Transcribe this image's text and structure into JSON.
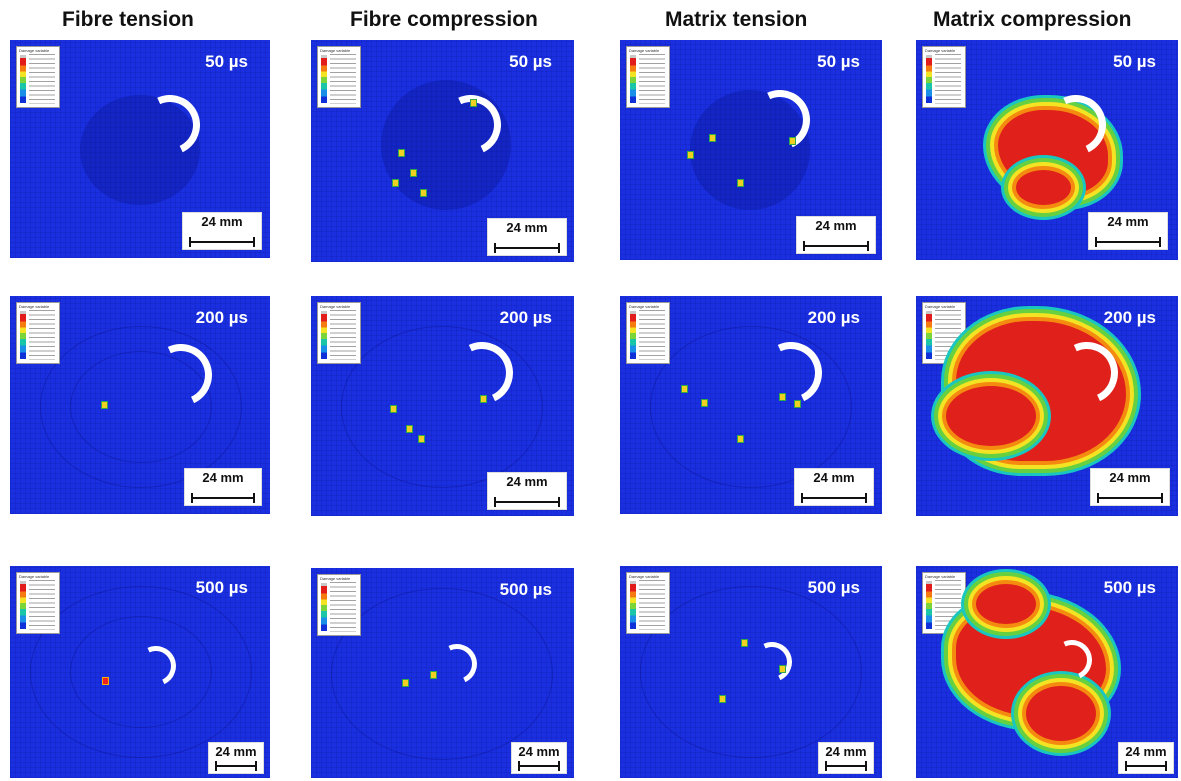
{
  "columns": [
    "Fibre tension",
    "Fibre compression",
    "Matrix tension",
    "Matrix compression"
  ],
  "times": [
    "50 µs",
    "200 µs",
    "500 µs"
  ],
  "scale_label": "24 mm",
  "legend_title": "Damage variable",
  "colors": {
    "background": "#1a2fe0",
    "damage": "#e0201b",
    "impactor": "#ffffff"
  }
}
